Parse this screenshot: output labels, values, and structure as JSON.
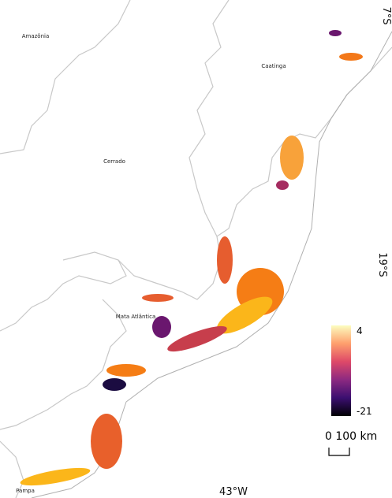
{
  "regions": [
    "Amazônia",
    "Caatinga",
    "Cerrado",
    "Mata Atlântica",
    "Pampa"
  ],
  "coordinates": {
    "north": "7°S",
    "middle": "19°S",
    "west": "43°W"
  },
  "colorbar": {
    "max": 4,
    "min": -21
  },
  "scale_bar": "0 100 km"
}
